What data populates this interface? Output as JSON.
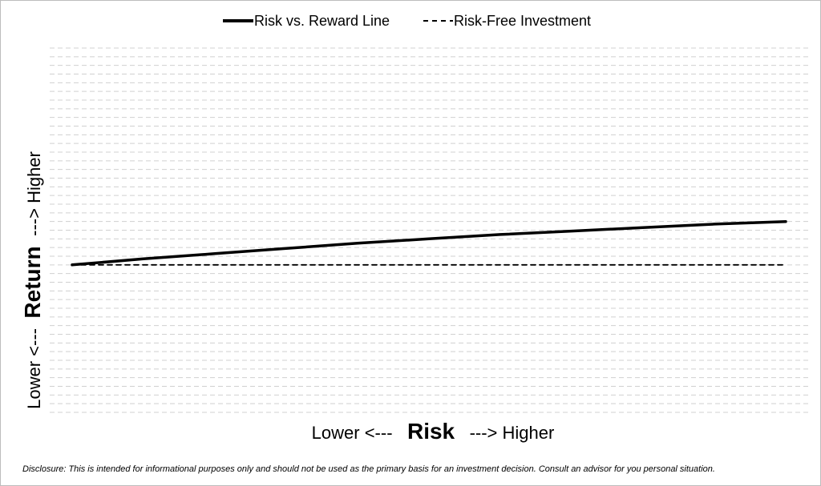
{
  "chart_data": {
    "type": "line",
    "legend": {
      "placement": "top-center",
      "entries": [
        "Risk vs. Reward Line",
        "Risk-Free Investment"
      ]
    },
    "x_axis": {
      "lower_label": "Lower <---",
      "title": "Risk",
      "higher_label": "---> Higher"
    },
    "y_axis": {
      "lower_label": "Lower <---",
      "title": "Return",
      "higher_label": "---> Higher"
    },
    "grid": true,
    "series": [
      {
        "name": "Risk vs. Reward Line",
        "style": "solid",
        "color": "#000000",
        "x": [
          0,
          1,
          2,
          3,
          4,
          5,
          6,
          7,
          8,
          9,
          10
        ],
        "y": [
          0,
          0.7,
          1.3,
          1.9,
          2.5,
          3.0,
          3.5,
          3.9,
          4.3,
          4.7,
          5.0
        ]
      },
      {
        "name": "Risk-Free Investment",
        "style": "dashed",
        "color": "#000000",
        "x": [
          0,
          10
        ],
        "y": [
          0,
          0
        ]
      }
    ],
    "xlim": [
      0,
      10
    ],
    "ylim": [
      -17,
      25
    ]
  },
  "disclosure": "Disclosure: This is intended for informational purposes only and should not be used as the primary basis for an investment decision.  Consult an advisor for you personal situation."
}
